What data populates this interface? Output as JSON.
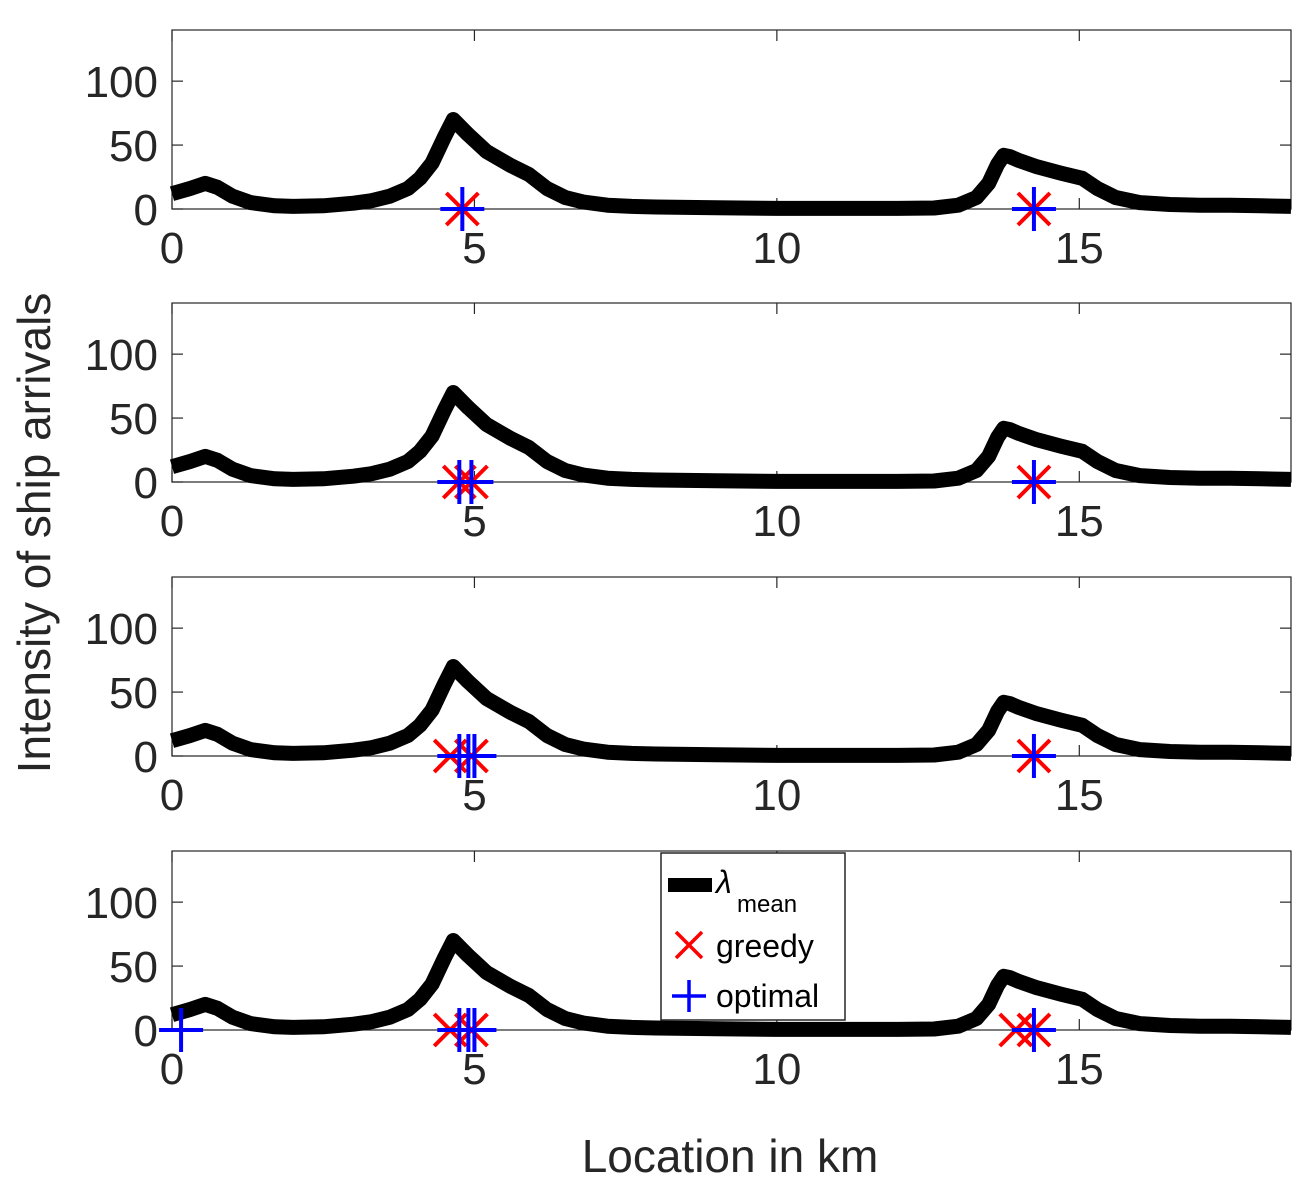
{
  "colors": {
    "curve": "#000000",
    "greedy": "#ff0000",
    "optimal": "#0000ff",
    "axis": "#262626"
  },
  "icons": {
    "greedy": "x-cross-marker",
    "optimal": "plus-marker"
  },
  "ylabel": "Intensity of ship arrivals",
  "xlabel": "Location in km",
  "legend": {
    "lambda_symbol": "λ",
    "lambda_sub": "mean",
    "greedy": "greedy",
    "optimal": "optimal",
    "placement": "inside-bottom-panel-center"
  },
  "chart_data": {
    "type": "line",
    "xlim": [
      0,
      18.5
    ],
    "ylim": [
      0,
      140
    ],
    "xticks": [
      0,
      5,
      10,
      15
    ],
    "yticks": [
      0,
      50,
      100
    ],
    "grid": false,
    "lambda_mean": {
      "x": [
        0,
        0.3,
        0.55,
        0.75,
        1.0,
        1.3,
        1.7,
        2.0,
        2.5,
        3.0,
        3.3,
        3.6,
        3.9,
        4.1,
        4.3,
        4.5,
        4.65,
        4.9,
        5.2,
        5.6,
        5.9,
        6.2,
        6.5,
        6.8,
        7.2,
        7.6,
        8,
        9,
        10,
        11,
        12,
        12.6,
        13.0,
        13.3,
        13.5,
        13.65,
        13.75,
        13.85,
        14.0,
        14.3,
        14.7,
        15.05,
        15.3,
        15.6,
        16.0,
        16.5,
        17,
        17.5,
        18,
        18.5
      ],
      "y": [
        12,
        16,
        20,
        17,
        10,
        5,
        2.5,
        2,
        2.5,
        4.5,
        6.5,
        10,
        16,
        24,
        36,
        56,
        70,
        58,
        45,
        34,
        27,
        16,
        9,
        5.5,
        3,
        2,
        1.6,
        1,
        0.5,
        0.5,
        0.5,
        0.8,
        3,
        9,
        20,
        35,
        42,
        41,
        38,
        33,
        28,
        24,
        16,
        9,
        5,
        3.5,
        3,
        3,
        2.5,
        2
      ]
    },
    "panels": [
      {
        "greedy_x": [
          4.8,
          14.25
        ],
        "optimal_x": [
          4.8,
          14.25
        ]
      },
      {
        "greedy_x": [
          4.75,
          4.95,
          14.25
        ],
        "optimal_x": [
          4.75,
          4.95,
          14.25
        ]
      },
      {
        "greedy_x": [
          4.6,
          4.95,
          14.25
        ],
        "optimal_x": [
          4.75,
          4.9,
          5.0,
          14.25
        ]
      },
      {
        "greedy_x": [
          4.6,
          4.95,
          13.95,
          14.25
        ],
        "optimal_x": [
          0.15,
          4.75,
          4.9,
          5.0,
          14.25
        ]
      }
    ]
  }
}
